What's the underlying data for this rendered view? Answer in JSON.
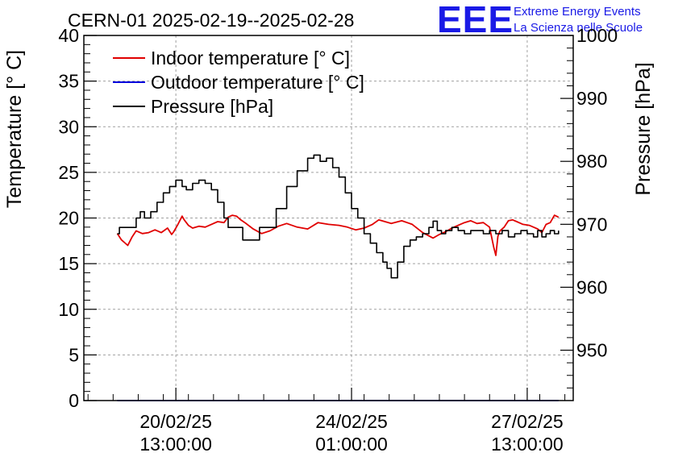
{
  "header": {
    "title": "CERN-01 2025-02-19--2025-02-28",
    "logo_text": "EEE",
    "logo_line1": "Extreme Energy Events",
    "logo_line2": "La Scienza nelle Scuole"
  },
  "colors": {
    "indoor": "#e00000",
    "outdoor": "#0000dd",
    "pressure": "#000000",
    "logo": "#1a1ae6"
  },
  "chart_data": {
    "type": "line",
    "title": "CERN-01 2025-02-19--2025-02-28",
    "x_unit": "hours since 2025-02-19 00:00",
    "xlim": [
      -7,
      227
    ],
    "x_major_ticks": [
      {
        "t": 37,
        "line1": "20/02/25",
        "line2": "13:00:00"
      },
      {
        "t": 121,
        "line1": "24/02/25",
        "line2": "01:00:00"
      },
      {
        "t": 205,
        "line1": "27/02/25",
        "line2": "13:00:00"
      }
    ],
    "ylabel_left": "Temperature [° C]",
    "ylim_left": [
      0,
      40
    ],
    "yticks_left": [
      0,
      5,
      10,
      15,
      20,
      25,
      30,
      35,
      40
    ],
    "ylabel_right": "Pressure [hPa]",
    "ylim_right": [
      942,
      1000
    ],
    "yticks_right": [
      950,
      960,
      970,
      980,
      990,
      1000
    ],
    "grid": true,
    "legend_position": "top-left",
    "legend": [
      "Indoor temperature [° C]",
      "Outdoor temperature [° C]",
      "Pressure [hPa]"
    ],
    "series": [
      {
        "name": "Indoor temperature [° C]",
        "axis": "left",
        "color": "#e00000",
        "x": [
          9,
          11,
          14,
          16,
          18,
          21,
          24,
          27,
          30,
          33,
          35,
          36,
          38,
          40,
          41,
          43,
          45,
          48,
          51,
          54,
          57,
          60,
          62,
          64,
          66,
          68,
          70,
          74,
          78,
          82,
          86,
          90,
          95,
          100,
          105,
          110,
          115,
          119,
          123,
          127,
          131,
          134,
          137,
          140,
          145,
          150,
          155,
          160,
          163,
          166,
          169,
          172,
          175,
          178,
          181,
          184,
          187,
          189,
          190,
          191,
          192,
          194,
          196,
          198,
          200,
          203,
          206,
          208,
          210,
          212,
          214,
          216,
          218,
          220
        ],
        "y": [
          18.3,
          17.6,
          17.0,
          17.9,
          18.6,
          18.3,
          18.4,
          18.7,
          18.4,
          18.9,
          18.2,
          18.5,
          19.3,
          20.2,
          19.8,
          19.2,
          18.9,
          19.1,
          19.0,
          19.3,
          19.6,
          19.5,
          20.1,
          20.3,
          20.2,
          19.8,
          19.5,
          18.8,
          18.3,
          18.6,
          19.1,
          19.4,
          19.0,
          18.8,
          19.5,
          19.3,
          19.2,
          19.0,
          18.7,
          18.9,
          19.3,
          19.8,
          19.6,
          19.4,
          19.7,
          19.3,
          18.4,
          17.8,
          18.2,
          18.5,
          18.9,
          19.2,
          19.5,
          19.7,
          19.4,
          19.5,
          19.0,
          16.8,
          15.9,
          18.0,
          18.6,
          19.0,
          19.7,
          19.8,
          19.6,
          19.3,
          19.2,
          19.0,
          18.8,
          18.4,
          19.3,
          19.5,
          20.3,
          20.1
        ]
      },
      {
        "name": "Outdoor temperature [° C]",
        "axis": "left",
        "color": "#0000dd",
        "x": [
          9,
          220
        ],
        "y": [
          0,
          0
        ]
      },
      {
        "name": "Pressure [hPa]",
        "axis": "right",
        "color": "#000000",
        "x": [
          9,
          10,
          15,
          18,
          20,
          22,
          25,
          28,
          31,
          34,
          37,
          40,
          42,
          45,
          48,
          51,
          54,
          57,
          60,
          62,
          65,
          69,
          73,
          77,
          80,
          85,
          90,
          95,
          100,
          103,
          106,
          109,
          112,
          115,
          118,
          121,
          124,
          127,
          130,
          133,
          136,
          138,
          140,
          143,
          146,
          149,
          152,
          155,
          158,
          160,
          162,
          164,
          166,
          169,
          172,
          175,
          178,
          181,
          184,
          187,
          190,
          193,
          196,
          199,
          202,
          205,
          208,
          210,
          212,
          214,
          216,
          218,
          220
        ],
        "y": [
          968.5,
          969.5,
          969.5,
          971.0,
          972.0,
          971.0,
          972.0,
          973.5,
          975.0,
          976.0,
          977.0,
          976.0,
          975.5,
          976.5,
          977.0,
          976.5,
          975.5,
          973.5,
          971.0,
          969.5,
          969.5,
          967.5,
          967.5,
          969.5,
          969.5,
          972.5,
          976.0,
          978.5,
          980.5,
          981.0,
          980.0,
          980.5,
          979.0,
          977.5,
          975.0,
          972.5,
          971.0,
          968.5,
          967.0,
          965.5,
          964.0,
          963.0,
          961.5,
          964.0,
          966.5,
          967.5,
          968.0,
          968.5,
          969.5,
          970.5,
          969.0,
          968.5,
          969.0,
          969.5,
          969.0,
          968.5,
          969.0,
          969.0,
          968.5,
          969.0,
          968.5,
          969.0,
          968.0,
          968.5,
          969.0,
          968.5,
          968.0,
          969.0,
          968.0,
          968.5,
          969.0,
          968.5,
          969.0
        ]
      }
    ]
  }
}
